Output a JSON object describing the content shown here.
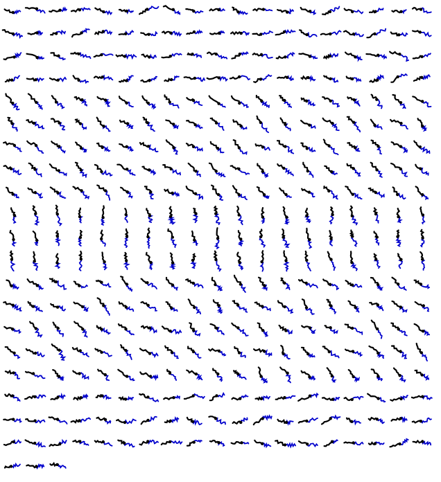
{
  "figure": {
    "kind": "grid of trajectory glyphs",
    "columns": 19,
    "rows": 21,
    "glyph_count": 383,
    "colors": {
      "observed": "#0000cc",
      "predicted": "#000000",
      "background": "#ffffff"
    },
    "legend": "none"
  }
}
